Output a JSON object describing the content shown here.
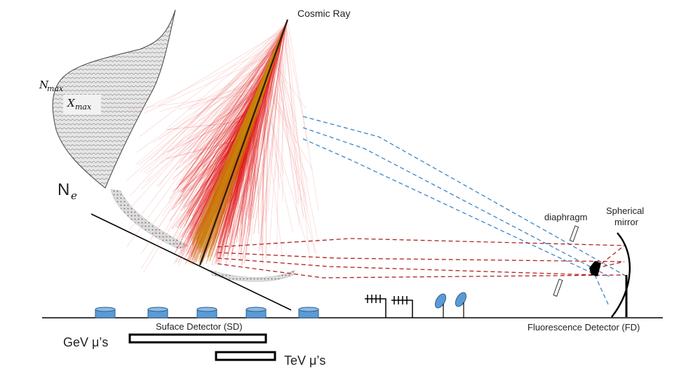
{
  "labels": {
    "cosmic_ray": "Cosmic Ray",
    "nmax_base": "N",
    "nmax_sub": "max",
    "xmax_base": "X",
    "xmax_sub": "max",
    "ne_base": "N",
    "ne_sub": "e",
    "diaphragm": "diaphragm",
    "mirror_line1": "Spherical",
    "mirror_line2": "mirror",
    "surface_detector": "Suface Detector (SD)",
    "fluorescence_detector": "Fluorescence Detector (FD)",
    "gev_muons": "GeV μ’s",
    "tev_muons": "TeV μ’s"
  },
  "colors": {
    "shower_core": "#2a1a0a",
    "shower_inner": "#c8860a",
    "shower_red": "#e01010",
    "shower_faint": "#f3a0a0",
    "fluorescence_rays": "#b22222",
    "cherenkov_rays": "#3a86c8",
    "detector_tank": "#5b9bd5",
    "ground": "#000000"
  },
  "icons": {
    "tank": "water-cherenkov-tank-icon",
    "antenna": "radio-antenna-icon",
    "dish": "radar-dish-icon",
    "camera": "pmt-camera-icon"
  }
}
